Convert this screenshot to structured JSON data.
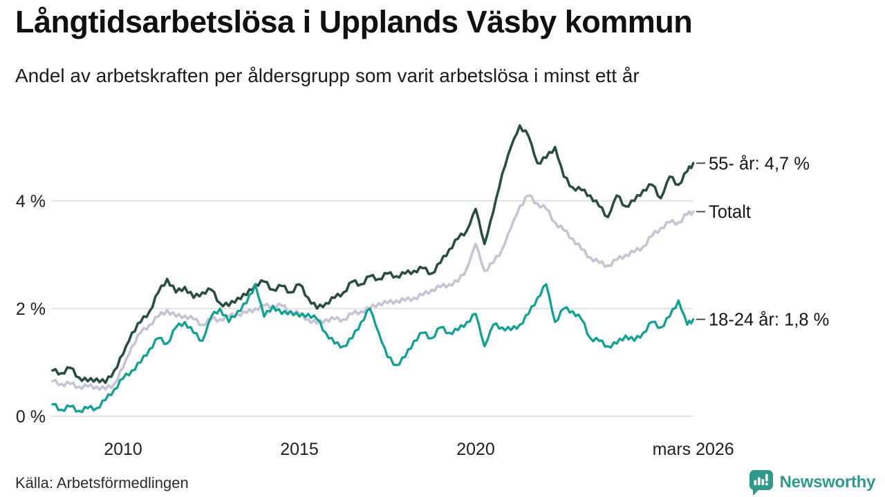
{
  "header": {
    "title": "Långtidsarbetslösa i Upplands Väsby kommun",
    "subtitle": "Andel av arbetskraften per åldersgrupp som varit arbetslösa i minst ett år"
  },
  "footer": {
    "source": "Källa: Arbetsförmedlingen",
    "brand": "Newsworthy",
    "brand_color": "#2f9a8c",
    "brand_icon": "bar-chart-speech-bubble"
  },
  "chart_data": {
    "type": "line",
    "title": "Långtidsarbetslösa i Upplands Väsby kommun",
    "subtitle": "Andel av arbetskraften per åldersgrupp som varit arbetslösa i minst ett år",
    "grid": true,
    "grid_color": "#e4e4e6",
    "axis_text_color": "#1f1f1f",
    "y_axis": {
      "unit": "%",
      "range": [
        0,
        5.7
      ],
      "ticks": [
        {
          "v": 0,
          "label": "0 %"
        },
        {
          "v": 2,
          "label": "2 %"
        },
        {
          "v": 4,
          "label": "4 %"
        }
      ]
    },
    "x_axis": {
      "unit": "year (monthly series)",
      "range": [
        2008,
        2026.25
      ],
      "ticks": [
        {
          "t": 2010,
          "label": "2010"
        },
        {
          "t": 2015,
          "label": "2015"
        },
        {
          "t": 2020,
          "label": "2020"
        },
        {
          "t": 2026.17,
          "label": "mars 2026"
        }
      ]
    },
    "legend_position": "right-end-labels",
    "series": [
      {
        "name": "55- år",
        "end_label": "55- år: 4,7 %",
        "last_value": "4,7 %",
        "color": "#2b4d40",
        "points": [
          [
            2008.0,
            0.85
          ],
          [
            2008.25,
            0.8
          ],
          [
            2008.5,
            0.9
          ],
          [
            2008.75,
            0.72
          ],
          [
            2009.0,
            0.65
          ],
          [
            2009.25,
            0.7
          ],
          [
            2009.5,
            0.62
          ],
          [
            2009.75,
            0.85
          ],
          [
            2010.0,
            1.15
          ],
          [
            2010.25,
            1.55
          ],
          [
            2010.5,
            1.75
          ],
          [
            2010.75,
            1.95
          ],
          [
            2011.0,
            2.3
          ],
          [
            2011.25,
            2.55
          ],
          [
            2011.5,
            2.3
          ],
          [
            2011.75,
            2.4
          ],
          [
            2012.0,
            2.2
          ],
          [
            2012.25,
            2.3
          ],
          [
            2012.5,
            2.35
          ],
          [
            2012.75,
            2.1
          ],
          [
            2013.0,
            2.05
          ],
          [
            2013.25,
            2.2
          ],
          [
            2013.5,
            2.25
          ],
          [
            2013.75,
            2.45
          ],
          [
            2014.0,
            2.5
          ],
          [
            2014.25,
            2.35
          ],
          [
            2014.5,
            2.42
          ],
          [
            2014.75,
            2.3
          ],
          [
            2015.0,
            2.45
          ],
          [
            2015.25,
            2.2
          ],
          [
            2015.5,
            2.0
          ],
          [
            2015.75,
            2.1
          ],
          [
            2016.0,
            2.2
          ],
          [
            2016.25,
            2.3
          ],
          [
            2016.5,
            2.5
          ],
          [
            2016.75,
            2.45
          ],
          [
            2017.0,
            2.6
          ],
          [
            2017.25,
            2.55
          ],
          [
            2017.5,
            2.65
          ],
          [
            2017.75,
            2.6
          ],
          [
            2018.0,
            2.65
          ],
          [
            2018.25,
            2.7
          ],
          [
            2018.5,
            2.75
          ],
          [
            2018.75,
            2.65
          ],
          [
            2019.0,
            2.85
          ],
          [
            2019.25,
            3.1
          ],
          [
            2019.5,
            3.3
          ],
          [
            2019.75,
            3.45
          ],
          [
            2020.0,
            3.85
          ],
          [
            2020.25,
            3.2
          ],
          [
            2020.5,
            3.8
          ],
          [
            2020.75,
            4.5
          ],
          [
            2021.0,
            5.0
          ],
          [
            2021.25,
            5.4
          ],
          [
            2021.5,
            5.2
          ],
          [
            2021.75,
            4.7
          ],
          [
            2022.0,
            4.8
          ],
          [
            2022.25,
            5.0
          ],
          [
            2022.5,
            4.45
          ],
          [
            2022.75,
            4.25
          ],
          [
            2023.0,
            4.2
          ],
          [
            2023.25,
            4.1
          ],
          [
            2023.5,
            3.9
          ],
          [
            2023.75,
            3.7
          ],
          [
            2024.0,
            4.1
          ],
          [
            2024.25,
            3.9
          ],
          [
            2024.5,
            4.0
          ],
          [
            2024.75,
            4.2
          ],
          [
            2025.0,
            4.3
          ],
          [
            2025.25,
            4.05
          ],
          [
            2025.5,
            4.45
          ],
          [
            2025.75,
            4.3
          ],
          [
            2026.0,
            4.55
          ],
          [
            2026.17,
            4.7
          ]
        ]
      },
      {
        "name": "Totalt",
        "end_label": "Totalt",
        "last_value": "3,8 %",
        "color": "#c5c4d2",
        "points": [
          [
            2008.0,
            0.65
          ],
          [
            2008.25,
            0.6
          ],
          [
            2008.5,
            0.6
          ],
          [
            2008.75,
            0.55
          ],
          [
            2009.0,
            0.55
          ],
          [
            2009.25,
            0.55
          ],
          [
            2009.5,
            0.5
          ],
          [
            2009.75,
            0.6
          ],
          [
            2010.0,
            0.9
          ],
          [
            2010.25,
            1.3
          ],
          [
            2010.5,
            1.55
          ],
          [
            2010.75,
            1.7
          ],
          [
            2011.0,
            1.85
          ],
          [
            2011.25,
            1.97
          ],
          [
            2011.5,
            1.85
          ],
          [
            2011.75,
            1.87
          ],
          [
            2012.0,
            1.8
          ],
          [
            2012.25,
            1.7
          ],
          [
            2012.5,
            1.8
          ],
          [
            2012.75,
            1.8
          ],
          [
            2013.0,
            1.85
          ],
          [
            2013.25,
            1.9
          ],
          [
            2013.5,
            1.92
          ],
          [
            2013.75,
            2.0
          ],
          [
            2014.0,
            2.05
          ],
          [
            2014.25,
            2.05
          ],
          [
            2014.5,
            2.05
          ],
          [
            2014.75,
            1.95
          ],
          [
            2015.0,
            1.9
          ],
          [
            2015.25,
            1.8
          ],
          [
            2015.5,
            1.72
          ],
          [
            2015.75,
            1.8
          ],
          [
            2016.0,
            1.8
          ],
          [
            2016.25,
            1.8
          ],
          [
            2016.5,
            1.9
          ],
          [
            2016.75,
            1.95
          ],
          [
            2017.0,
            2.0
          ],
          [
            2017.25,
            2.1
          ],
          [
            2017.5,
            2.1
          ],
          [
            2017.75,
            2.15
          ],
          [
            2018.0,
            2.15
          ],
          [
            2018.25,
            2.2
          ],
          [
            2018.5,
            2.25
          ],
          [
            2018.75,
            2.35
          ],
          [
            2019.0,
            2.4
          ],
          [
            2019.25,
            2.45
          ],
          [
            2019.5,
            2.5
          ],
          [
            2019.75,
            2.75
          ],
          [
            2020.0,
            3.2
          ],
          [
            2020.25,
            2.7
          ],
          [
            2020.5,
            2.85
          ],
          [
            2020.75,
            3.1
          ],
          [
            2021.0,
            3.5
          ],
          [
            2021.25,
            3.9
          ],
          [
            2021.5,
            4.1
          ],
          [
            2021.75,
            3.95
          ],
          [
            2022.0,
            3.85
          ],
          [
            2022.25,
            3.6
          ],
          [
            2022.5,
            3.45
          ],
          [
            2022.75,
            3.3
          ],
          [
            2023.0,
            3.1
          ],
          [
            2023.25,
            2.95
          ],
          [
            2023.5,
            2.85
          ],
          [
            2023.75,
            2.8
          ],
          [
            2024.0,
            2.9
          ],
          [
            2024.25,
            3.0
          ],
          [
            2024.5,
            3.05
          ],
          [
            2024.75,
            3.15
          ],
          [
            2025.0,
            3.35
          ],
          [
            2025.25,
            3.5
          ],
          [
            2025.5,
            3.6
          ],
          [
            2025.75,
            3.6
          ],
          [
            2026.0,
            3.75
          ],
          [
            2026.17,
            3.8
          ]
        ]
      },
      {
        "name": "18-24 år",
        "end_label": "18-24 år: 1,8 %",
        "last_value": "1,8 %",
        "color": "#0fa191",
        "points": [
          [
            2008.0,
            0.22
          ],
          [
            2008.25,
            0.12
          ],
          [
            2008.5,
            0.18
          ],
          [
            2008.75,
            0.1
          ],
          [
            2009.0,
            0.15
          ],
          [
            2009.25,
            0.15
          ],
          [
            2009.5,
            0.3
          ],
          [
            2009.75,
            0.5
          ],
          [
            2010.0,
            0.7
          ],
          [
            2010.25,
            0.85
          ],
          [
            2010.5,
            1.0
          ],
          [
            2010.75,
            1.25
          ],
          [
            2011.0,
            1.45
          ],
          [
            2011.25,
            1.35
          ],
          [
            2011.5,
            1.65
          ],
          [
            2011.75,
            1.75
          ],
          [
            2012.0,
            1.55
          ],
          [
            2012.25,
            1.4
          ],
          [
            2012.5,
            1.85
          ],
          [
            2012.75,
            2.0
          ],
          [
            2013.0,
            1.75
          ],
          [
            2013.25,
            1.95
          ],
          [
            2013.5,
            2.1
          ],
          [
            2013.75,
            2.45
          ],
          [
            2014.0,
            1.85
          ],
          [
            2014.25,
            2.05
          ],
          [
            2014.5,
            1.9
          ],
          [
            2014.75,
            1.95
          ],
          [
            2015.0,
            1.85
          ],
          [
            2015.25,
            1.9
          ],
          [
            2015.5,
            1.8
          ],
          [
            2015.75,
            1.55
          ],
          [
            2016.0,
            1.35
          ],
          [
            2016.25,
            1.3
          ],
          [
            2016.5,
            1.45
          ],
          [
            2016.75,
            1.75
          ],
          [
            2017.0,
            2.0
          ],
          [
            2017.25,
            1.55
          ],
          [
            2017.5,
            1.1
          ],
          [
            2017.75,
            0.95
          ],
          [
            2018.0,
            1.1
          ],
          [
            2018.25,
            1.4
          ],
          [
            2018.5,
            1.55
          ],
          [
            2018.75,
            1.45
          ],
          [
            2019.0,
            1.65
          ],
          [
            2019.25,
            1.55
          ],
          [
            2019.5,
            1.6
          ],
          [
            2019.75,
            1.75
          ],
          [
            2020.0,
            1.9
          ],
          [
            2020.25,
            1.3
          ],
          [
            2020.5,
            1.7
          ],
          [
            2020.75,
            1.65
          ],
          [
            2021.0,
            1.6
          ],
          [
            2021.25,
            1.7
          ],
          [
            2021.5,
            1.9
          ],
          [
            2021.75,
            2.2
          ],
          [
            2022.0,
            2.45
          ],
          [
            2022.25,
            1.75
          ],
          [
            2022.5,
            2.0
          ],
          [
            2022.75,
            1.95
          ],
          [
            2023.0,
            1.8
          ],
          [
            2023.25,
            1.45
          ],
          [
            2023.5,
            1.4
          ],
          [
            2023.75,
            1.3
          ],
          [
            2024.0,
            1.35
          ],
          [
            2024.25,
            1.5
          ],
          [
            2024.5,
            1.4
          ],
          [
            2024.75,
            1.55
          ],
          [
            2025.0,
            1.75
          ],
          [
            2025.25,
            1.65
          ],
          [
            2025.5,
            1.85
          ],
          [
            2025.75,
            2.15
          ],
          [
            2026.0,
            1.7
          ],
          [
            2026.17,
            1.8
          ]
        ]
      }
    ]
  }
}
